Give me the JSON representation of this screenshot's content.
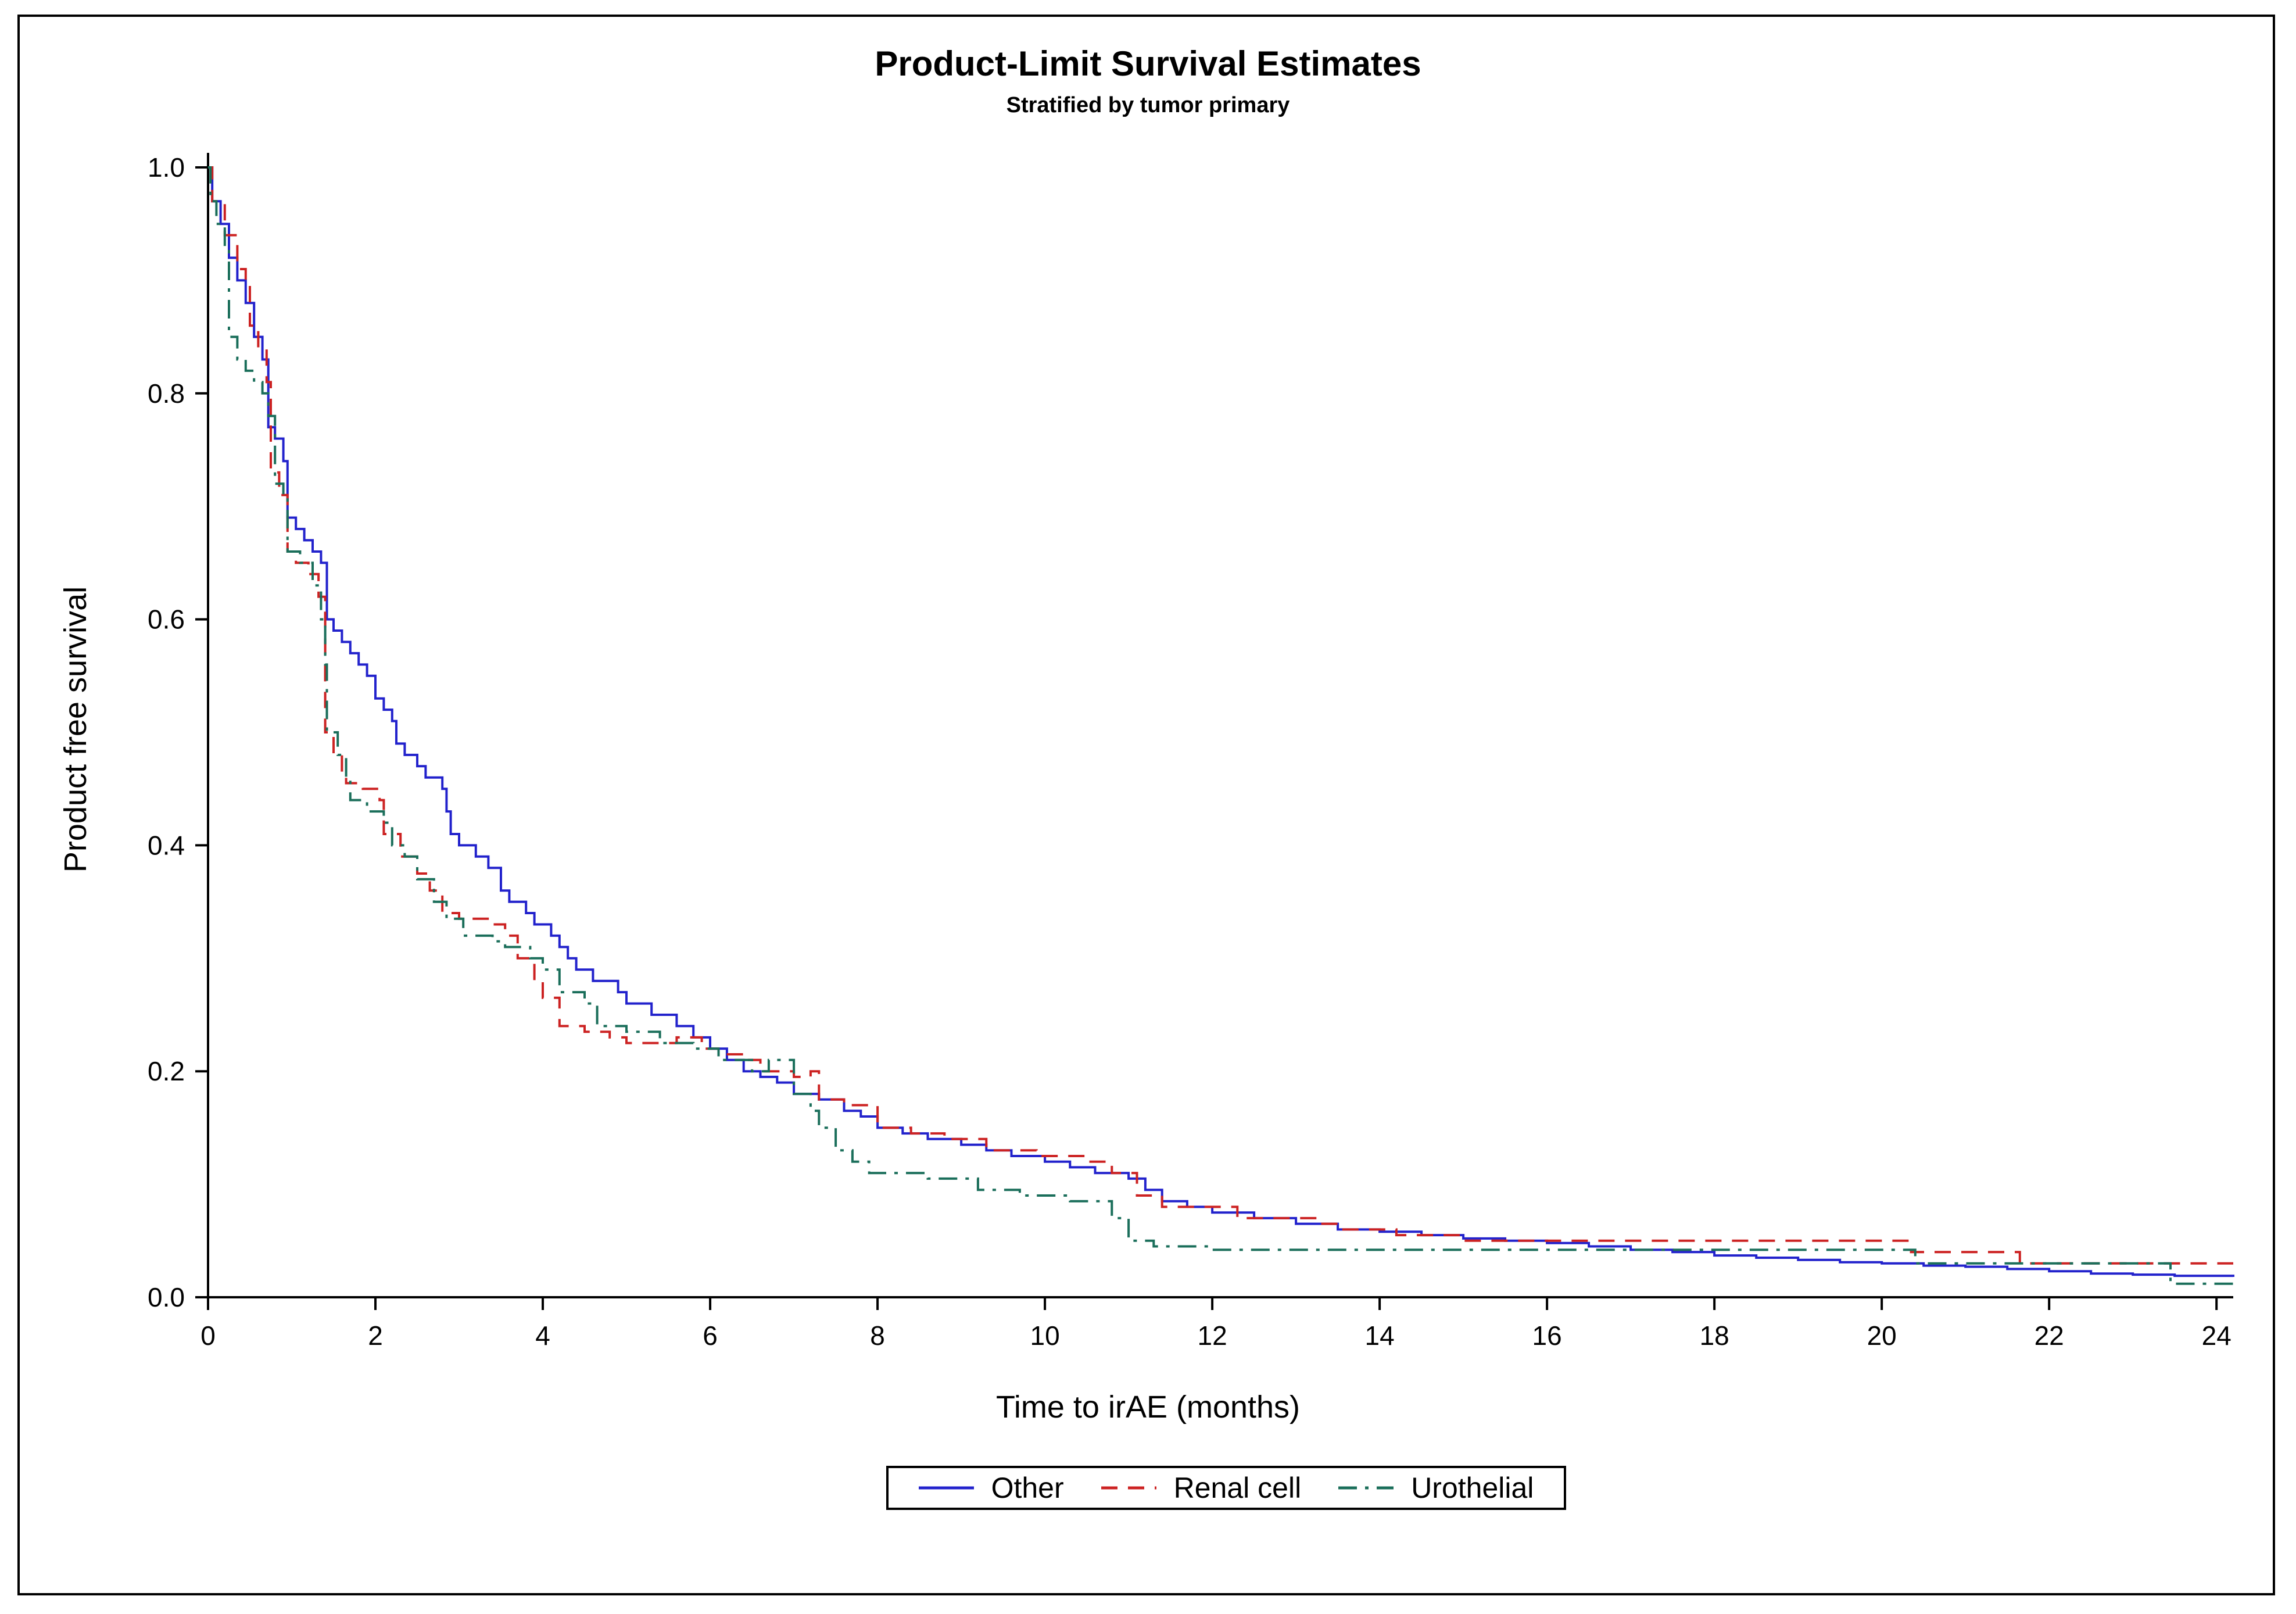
{
  "chart_data": {
    "type": "line",
    "title": "Product-Limit Survival Estimates",
    "subtitle": "Stratified by tumor primary",
    "xlabel": "Time to irAE (months)",
    "ylabel": "Product free survival",
    "xlim": [
      0,
      24.2
    ],
    "ylim": [
      0,
      1.0
    ],
    "x_ticks": [
      0,
      2,
      4,
      6,
      8,
      10,
      12,
      14,
      16,
      18,
      20,
      22,
      24
    ],
    "x_tick_labels": [
      "0",
      "2",
      "4",
      "6",
      "8",
      "10",
      "12",
      "14",
      "16",
      "18",
      "20",
      "22",
      "24"
    ],
    "y_ticks": [
      0.0,
      0.2,
      0.4,
      0.6,
      0.8,
      1.0
    ],
    "y_tick_labels": [
      "0.0",
      "0.2",
      "0.4",
      "0.6",
      "0.8",
      "1.0"
    ],
    "grid": false,
    "legend_position": "bottom-center",
    "series": [
      {
        "name": "Other",
        "color": "#2222cc",
        "dash": "solid",
        "points": [
          [
            0,
            1.0
          ],
          [
            0.05,
            0.97
          ],
          [
            0.15,
            0.95
          ],
          [
            0.25,
            0.92
          ],
          [
            0.35,
            0.9
          ],
          [
            0.45,
            0.88
          ],
          [
            0.55,
            0.85
          ],
          [
            0.65,
            0.83
          ],
          [
            0.72,
            0.77
          ],
          [
            0.8,
            0.76
          ],
          [
            0.9,
            0.74
          ],
          [
            0.95,
            0.69
          ],
          [
            1.05,
            0.68
          ],
          [
            1.15,
            0.67
          ],
          [
            1.25,
            0.66
          ],
          [
            1.35,
            0.65
          ],
          [
            1.42,
            0.6
          ],
          [
            1.5,
            0.59
          ],
          [
            1.6,
            0.58
          ],
          [
            1.7,
            0.57
          ],
          [
            1.8,
            0.56
          ],
          [
            1.9,
            0.55
          ],
          [
            2.0,
            0.53
          ],
          [
            2.1,
            0.52
          ],
          [
            2.2,
            0.51
          ],
          [
            2.25,
            0.49
          ],
          [
            2.35,
            0.48
          ],
          [
            2.5,
            0.47
          ],
          [
            2.6,
            0.46
          ],
          [
            2.8,
            0.45
          ],
          [
            2.85,
            0.43
          ],
          [
            2.9,
            0.41
          ],
          [
            3.0,
            0.4
          ],
          [
            3.2,
            0.39
          ],
          [
            3.35,
            0.38
          ],
          [
            3.5,
            0.36
          ],
          [
            3.6,
            0.35
          ],
          [
            3.8,
            0.34
          ],
          [
            3.9,
            0.33
          ],
          [
            4.1,
            0.32
          ],
          [
            4.2,
            0.31
          ],
          [
            4.3,
            0.3
          ],
          [
            4.4,
            0.29
          ],
          [
            4.6,
            0.28
          ],
          [
            4.9,
            0.27
          ],
          [
            5.0,
            0.26
          ],
          [
            5.3,
            0.25
          ],
          [
            5.6,
            0.24
          ],
          [
            5.8,
            0.23
          ],
          [
            6.0,
            0.22
          ],
          [
            6.2,
            0.21
          ],
          [
            6.4,
            0.2
          ],
          [
            6.6,
            0.195
          ],
          [
            6.8,
            0.19
          ],
          [
            7.0,
            0.18
          ],
          [
            7.3,
            0.175
          ],
          [
            7.6,
            0.165
          ],
          [
            7.8,
            0.16
          ],
          [
            8.0,
            0.15
          ],
          [
            8.3,
            0.145
          ],
          [
            8.6,
            0.14
          ],
          [
            9.0,
            0.135
          ],
          [
            9.3,
            0.13
          ],
          [
            9.6,
            0.125
          ],
          [
            10.0,
            0.12
          ],
          [
            10.3,
            0.115
          ],
          [
            10.6,
            0.11
          ],
          [
            11.0,
            0.105
          ],
          [
            11.2,
            0.095
          ],
          [
            11.4,
            0.085
          ],
          [
            11.7,
            0.08
          ],
          [
            12.0,
            0.075
          ],
          [
            12.5,
            0.07
          ],
          [
            13.0,
            0.065
          ],
          [
            13.5,
            0.06
          ],
          [
            14.0,
            0.058
          ],
          [
            14.5,
            0.055
          ],
          [
            15.0,
            0.052
          ],
          [
            15.5,
            0.05
          ],
          [
            16.0,
            0.048
          ],
          [
            16.5,
            0.045
          ],
          [
            17.0,
            0.042
          ],
          [
            17.5,
            0.04
          ],
          [
            18.0,
            0.037
          ],
          [
            18.5,
            0.035
          ],
          [
            19.0,
            0.033
          ],
          [
            19.5,
            0.031
          ],
          [
            20.0,
            0.03
          ],
          [
            20.5,
            0.028
          ],
          [
            21.0,
            0.027
          ],
          [
            21.5,
            0.025
          ],
          [
            22.0,
            0.023
          ],
          [
            22.5,
            0.021
          ],
          [
            23.0,
            0.02
          ],
          [
            23.5,
            0.019
          ],
          [
            24.2,
            0.018
          ]
        ]
      },
      {
        "name": "Renal cell",
        "color": "#cc2222",
        "dash": "28,18",
        "points": [
          [
            0,
            1.0
          ],
          [
            0.05,
            0.97
          ],
          [
            0.2,
            0.94
          ],
          [
            0.35,
            0.91
          ],
          [
            0.45,
            0.9
          ],
          [
            0.5,
            0.86
          ],
          [
            0.6,
            0.84
          ],
          [
            0.7,
            0.81
          ],
          [
            0.75,
            0.73
          ],
          [
            0.85,
            0.71
          ],
          [
            0.95,
            0.66
          ],
          [
            1.05,
            0.65
          ],
          [
            1.2,
            0.64
          ],
          [
            1.32,
            0.62
          ],
          [
            1.4,
            0.5
          ],
          [
            1.5,
            0.48
          ],
          [
            1.6,
            0.46
          ],
          [
            1.65,
            0.455
          ],
          [
            1.85,
            0.45
          ],
          [
            2.05,
            0.44
          ],
          [
            2.1,
            0.41
          ],
          [
            2.3,
            0.39
          ],
          [
            2.5,
            0.375
          ],
          [
            2.65,
            0.36
          ],
          [
            2.8,
            0.34
          ],
          [
            3.0,
            0.335
          ],
          [
            3.4,
            0.33
          ],
          [
            3.55,
            0.32
          ],
          [
            3.7,
            0.3
          ],
          [
            3.9,
            0.28
          ],
          [
            4.0,
            0.265
          ],
          [
            4.2,
            0.24
          ],
          [
            4.5,
            0.235
          ],
          [
            4.8,
            0.23
          ],
          [
            5.0,
            0.225
          ],
          [
            5.4,
            0.225
          ],
          [
            5.6,
            0.23
          ],
          [
            5.9,
            0.22
          ],
          [
            6.1,
            0.215
          ],
          [
            6.4,
            0.21
          ],
          [
            6.6,
            0.2
          ],
          [
            7.0,
            0.195
          ],
          [
            7.2,
            0.2
          ],
          [
            7.3,
            0.175
          ],
          [
            7.6,
            0.17
          ],
          [
            8.0,
            0.15
          ],
          [
            8.4,
            0.145
          ],
          [
            8.8,
            0.14
          ],
          [
            9.3,
            0.13
          ],
          [
            9.9,
            0.125
          ],
          [
            10.5,
            0.12
          ],
          [
            10.8,
            0.11
          ],
          [
            11.1,
            0.09
          ],
          [
            11.4,
            0.08
          ],
          [
            12.3,
            0.07
          ],
          [
            13.3,
            0.065
          ],
          [
            13.5,
            0.06
          ],
          [
            14.2,
            0.055
          ],
          [
            15.0,
            0.05
          ],
          [
            18.0,
            0.05
          ],
          [
            20.3,
            0.05
          ],
          [
            20.35,
            0.04
          ],
          [
            21.6,
            0.04
          ],
          [
            21.65,
            0.03
          ],
          [
            24.2,
            0.03
          ]
        ]
      },
      {
        "name": "Urothelial",
        "color": "#1a6e5a",
        "dash": "32,14,6,14",
        "points": [
          [
            0,
            1.0
          ],
          [
            0.03,
            0.97
          ],
          [
            0.1,
            0.95
          ],
          [
            0.2,
            0.93
          ],
          [
            0.25,
            0.85
          ],
          [
            0.35,
            0.83
          ],
          [
            0.45,
            0.82
          ],
          [
            0.55,
            0.81
          ],
          [
            0.65,
            0.8
          ],
          [
            0.72,
            0.78
          ],
          [
            0.8,
            0.72
          ],
          [
            0.9,
            0.71
          ],
          [
            0.95,
            0.66
          ],
          [
            1.1,
            0.65
          ],
          [
            1.25,
            0.63
          ],
          [
            1.35,
            0.6
          ],
          [
            1.4,
            0.56
          ],
          [
            1.42,
            0.5
          ],
          [
            1.55,
            0.48
          ],
          [
            1.65,
            0.46
          ],
          [
            1.7,
            0.44
          ],
          [
            1.9,
            0.43
          ],
          [
            2.1,
            0.42
          ],
          [
            2.2,
            0.4
          ],
          [
            2.35,
            0.39
          ],
          [
            2.5,
            0.37
          ],
          [
            2.7,
            0.35
          ],
          [
            2.85,
            0.335
          ],
          [
            3.05,
            0.32
          ],
          [
            3.4,
            0.315
          ],
          [
            3.55,
            0.31
          ],
          [
            3.85,
            0.3
          ],
          [
            4.0,
            0.29
          ],
          [
            4.2,
            0.27
          ],
          [
            4.5,
            0.26
          ],
          [
            4.65,
            0.24
          ],
          [
            5.0,
            0.235
          ],
          [
            5.4,
            0.225
          ],
          [
            5.8,
            0.22
          ],
          [
            6.1,
            0.21
          ],
          [
            6.5,
            0.2
          ],
          [
            6.7,
            0.21
          ],
          [
            7.0,
            0.18
          ],
          [
            7.2,
            0.165
          ],
          [
            7.3,
            0.15
          ],
          [
            7.5,
            0.13
          ],
          [
            7.7,
            0.12
          ],
          [
            7.9,
            0.11
          ],
          [
            8.6,
            0.105
          ],
          [
            9.2,
            0.095
          ],
          [
            9.7,
            0.09
          ],
          [
            10.3,
            0.085
          ],
          [
            10.8,
            0.07
          ],
          [
            11.0,
            0.05
          ],
          [
            11.3,
            0.045
          ],
          [
            12.0,
            0.042
          ],
          [
            14.0,
            0.042
          ],
          [
            16.0,
            0.042
          ],
          [
            18.0,
            0.042
          ],
          [
            20.3,
            0.042
          ],
          [
            20.4,
            0.03
          ],
          [
            23.4,
            0.03
          ],
          [
            23.45,
            0.012
          ],
          [
            24.2,
            0.012
          ]
        ]
      }
    ]
  }
}
